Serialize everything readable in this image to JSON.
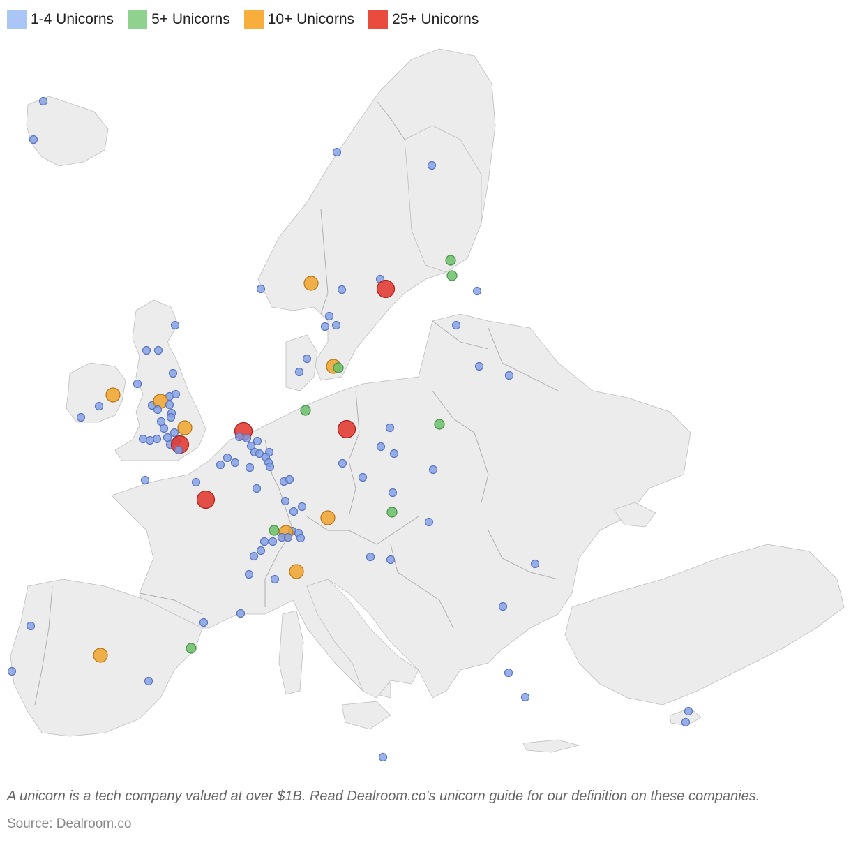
{
  "legend": [
    {
      "label": "1-4 Unicorns",
      "color": "#a9c6f7"
    },
    {
      "label": "5+ Unicorns",
      "color": "#8fd18f"
    },
    {
      "label": "10+ Unicorns",
      "color": "#f7ae3c"
    },
    {
      "label": "25+ Unicorns",
      "color": "#e94b3c"
    }
  ],
  "categories": {
    "small": {
      "fill": "#7f9ee8",
      "stroke": "#5a74b8",
      "level": "1-4 Unicorns"
    },
    "medium": {
      "fill": "#6ac16a",
      "stroke": "#4a8f4a",
      "level": "5+ Unicorns"
    },
    "large": {
      "fill": "#f1a52c",
      "stroke": "#b57716",
      "level": "10+ Unicorns"
    },
    "xlarge": {
      "fill": "#e2342a",
      "stroke": "#a72019",
      "level": "25+ Unicorns"
    }
  },
  "footnote": "A unicorn is a tech company valued at over $1B. Read Dealroom.co's unicorn guide for our definition on these companies.",
  "source": "Source: Dealroom.co"
}
